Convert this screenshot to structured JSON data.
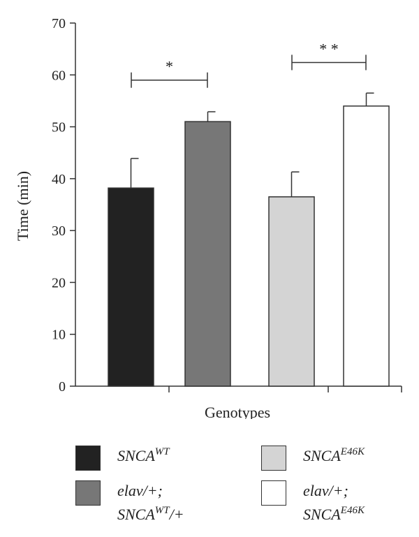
{
  "chart_data": {
    "type": "bar",
    "xlabel": "Genotypes",
    "ylabel": "Time (min)",
    "ylim": [
      0,
      70
    ],
    "yticks": [
      0,
      10,
      20,
      30,
      40,
      50,
      60,
      70
    ],
    "grid": false,
    "legend_position": "bottom",
    "series": [
      {
        "key": "wt",
        "value": 38.2,
        "error": 5.7,
        "color": "#222222"
      },
      {
        "key": "elav_wt",
        "value": 51.0,
        "error": 1.9,
        "color": "#777777"
      },
      {
        "key": "e46k",
        "value": 36.5,
        "error": 4.8,
        "color": "#d4d4d4"
      },
      {
        "key": "elav_e46k",
        "value": 54.0,
        "error": 2.5,
        "color": "#ffffff"
      }
    ],
    "significance": [
      {
        "from": 0,
        "to": 1,
        "label": "*",
        "y": 59
      },
      {
        "from": 2,
        "to": 3,
        "label": "* *",
        "y": 62.4
      }
    ]
  },
  "legend": {
    "wt": {
      "base": "SNCA",
      "sup": "WT"
    },
    "e46k": {
      "base": "SNCA",
      "sup": "E46K"
    },
    "elav_wt": {
      "line1": "elav/+;",
      "base": "SNCA",
      "sup": "WT",
      "suffix": "/+"
    },
    "elav_e46k": {
      "line1": "elav/+;",
      "base": "SNCA",
      "sup": "E46K"
    }
  }
}
